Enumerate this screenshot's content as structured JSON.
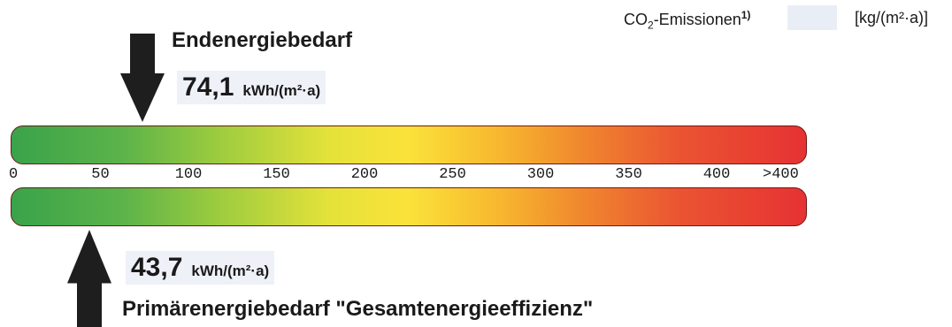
{
  "co2": {
    "label_main": "CO",
    "label_sub": "2",
    "label_rest": "-Emissionen",
    "label_sup": "1)",
    "value": "",
    "unit": "[kg/(m²·a)]"
  },
  "end_energy": {
    "title": "Endenergiebedarf",
    "value": "74,1",
    "unit": "kWh/(m²·a)"
  },
  "primary_energy": {
    "title": "Primärenergiebedarf \"Gesamtenergieeffizienz\"",
    "value": "43,7",
    "unit": "kWh/(m²·a)"
  },
  "chart_data": {
    "type": "bar",
    "xlim": [
      0,
      425
    ],
    "ticks": [
      {
        "label": "0",
        "value": 0
      },
      {
        "label": "50",
        "value": 50
      },
      {
        "label": "100",
        "value": 100
      },
      {
        "label": "150",
        "value": 150
      },
      {
        "label": "200",
        "value": 200
      },
      {
        "label": "250",
        "value": 250
      },
      {
        "label": "300",
        "value": 300
      },
      {
        "label": "350",
        "value": 350
      },
      {
        "label": "400",
        "value": 400
      },
      {
        "label": ">400",
        "value": 425
      }
    ],
    "markers": [
      {
        "name": "Endenergiebedarf",
        "value": 74.1,
        "position": "top"
      },
      {
        "name": "Primärenergiebedarf \"Gesamtenergieeffizienz\"",
        "value": 43.7,
        "position": "bottom"
      }
    ],
    "gradient": [
      "#3aa34a",
      "#9ccc3e",
      "#fbe23a",
      "#f0862e",
      "#e63233"
    ]
  }
}
